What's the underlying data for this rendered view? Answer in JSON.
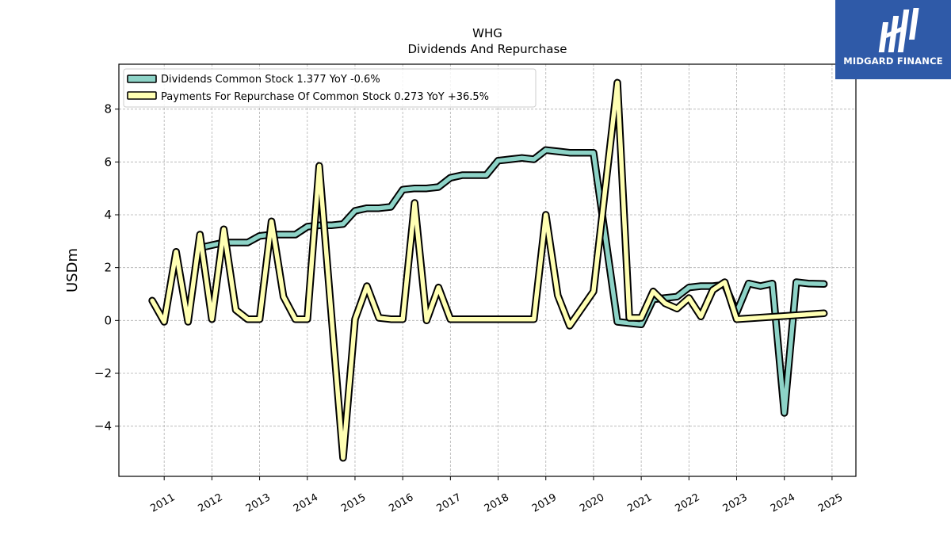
{
  "brand": {
    "name": "MIDGARD FINANCE",
    "color": "#2f5aa8"
  },
  "chart_data": {
    "type": "line",
    "title": "WHG",
    "subtitle": "Dividends And Repurchase",
    "xlabel": "",
    "ylabel": "USDm",
    "xlim": [
      2010.05,
      2025.5
    ],
    "ylim": [
      -5.9,
      9.7
    ],
    "yticks": [
      -4,
      -2,
      0,
      2,
      4,
      6,
      8
    ],
    "xticks": [
      "2011",
      "2012",
      "2013",
      "2014",
      "2015",
      "2016",
      "2017",
      "2018",
      "2019",
      "2020",
      "2021",
      "2022",
      "2023",
      "2024",
      "2025"
    ],
    "grid": true,
    "legend_position": "top-left",
    "series": [
      {
        "name": "Dividends Common Stock  1.377 YoY -0.6%",
        "color": "#8dd3c7",
        "points": [
          [
            2011.75,
            2.75
          ],
          [
            2012.0,
            2.85
          ],
          [
            2012.25,
            2.95
          ],
          [
            2012.5,
            2.95
          ],
          [
            2012.75,
            2.95
          ],
          [
            2013.0,
            3.2
          ],
          [
            2013.25,
            3.25
          ],
          [
            2013.5,
            3.25
          ],
          [
            2013.75,
            3.25
          ],
          [
            2014.0,
            3.55
          ],
          [
            2014.25,
            3.6
          ],
          [
            2014.5,
            3.6
          ],
          [
            2014.75,
            3.65
          ],
          [
            2015.0,
            4.15
          ],
          [
            2015.25,
            4.25
          ],
          [
            2015.5,
            4.25
          ],
          [
            2015.75,
            4.3
          ],
          [
            2016.0,
            4.95
          ],
          [
            2016.25,
            5.0
          ],
          [
            2016.5,
            5.0
          ],
          [
            2016.75,
            5.05
          ],
          [
            2017.0,
            5.4
          ],
          [
            2017.25,
            5.5
          ],
          [
            2017.5,
            5.5
          ],
          [
            2017.75,
            5.5
          ],
          [
            2018.0,
            6.05
          ],
          [
            2018.25,
            6.1
          ],
          [
            2018.5,
            6.15
          ],
          [
            2018.75,
            6.1
          ],
          [
            2019.0,
            6.45
          ],
          [
            2019.25,
            6.4
          ],
          [
            2019.5,
            6.35
          ],
          [
            2019.75,
            6.35
          ],
          [
            2020.0,
            6.35
          ],
          [
            2020.5,
            -0.05
          ],
          [
            2020.75,
            -0.1
          ],
          [
            2021.0,
            -0.15
          ],
          [
            2021.25,
            0.8
          ],
          [
            2021.5,
            0.85
          ],
          [
            2021.75,
            0.9
          ],
          [
            2022.0,
            1.25
          ],
          [
            2022.25,
            1.3
          ],
          [
            2022.5,
            1.3
          ],
          [
            2022.75,
            1.35
          ],
          [
            2023.0,
            0.3
          ],
          [
            2023.25,
            1.4
          ],
          [
            2023.5,
            1.3
          ],
          [
            2023.75,
            1.4
          ],
          [
            2024.0,
            -3.5
          ],
          [
            2024.25,
            1.45
          ],
          [
            2024.5,
            1.4
          ],
          [
            2024.83,
            1.38
          ]
        ]
      },
      {
        "name": "Payments For Repurchase Of Common Stock  0.273 YoY +36.5%",
        "color": "#ffffb3",
        "points": [
          [
            2010.75,
            0.75
          ],
          [
            2011.0,
            -0.05
          ],
          [
            2011.25,
            2.6
          ],
          [
            2011.5,
            -0.05
          ],
          [
            2011.75,
            3.25
          ],
          [
            2012.0,
            0.05
          ],
          [
            2012.25,
            3.45
          ],
          [
            2012.5,
            0.4
          ],
          [
            2012.75,
            0.05
          ],
          [
            2013.0,
            0.05
          ],
          [
            2013.25,
            3.75
          ],
          [
            2013.5,
            0.9
          ],
          [
            2013.75,
            0.05
          ],
          [
            2014.0,
            0.05
          ],
          [
            2014.25,
            5.85
          ],
          [
            2014.75,
            -5.2
          ],
          [
            2015.0,
            0.05
          ],
          [
            2015.25,
            1.3
          ],
          [
            2015.5,
            0.1
          ],
          [
            2015.75,
            0.05
          ],
          [
            2016.0,
            0.05
          ],
          [
            2016.25,
            4.45
          ],
          [
            2016.5,
            0.0
          ],
          [
            2016.75,
            1.25
          ],
          [
            2017.0,
            0.05
          ],
          [
            2017.5,
            0.05
          ],
          [
            2018.0,
            0.05
          ],
          [
            2018.5,
            0.05
          ],
          [
            2018.75,
            0.05
          ],
          [
            2019.0,
            4.0
          ],
          [
            2019.25,
            0.95
          ],
          [
            2019.5,
            -0.2
          ],
          [
            2020.0,
            1.1
          ],
          [
            2020.5,
            9.0
          ],
          [
            2020.75,
            0.1
          ],
          [
            2021.0,
            0.1
          ],
          [
            2021.25,
            1.1
          ],
          [
            2021.5,
            0.65
          ],
          [
            2021.75,
            0.45
          ],
          [
            2022.0,
            0.85
          ],
          [
            2022.25,
            0.15
          ],
          [
            2022.5,
            1.15
          ],
          [
            2022.75,
            1.45
          ],
          [
            2023.0,
            0.05
          ],
          [
            2024.83,
            0.27
          ]
        ]
      }
    ]
  }
}
